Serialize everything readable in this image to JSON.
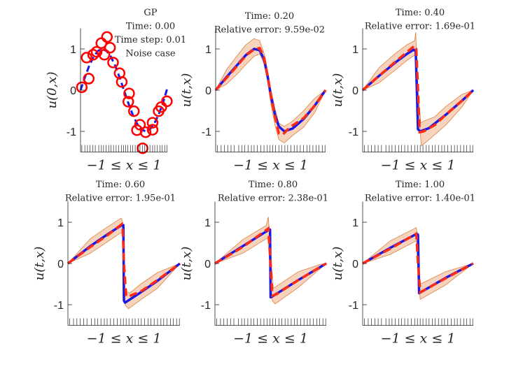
{
  "chart_data": [
    {
      "type": "scatter+line",
      "title_lines": [
        "GP",
        "Time: 0.00",
        "Time step: 0.01",
        "Noise case"
      ],
      "xlabel": "−1 ≤ x ≤ 1",
      "ylabel": "u(0,x)",
      "xlim": [
        -1,
        1
      ],
      "ylim": [
        -1.5,
        1.5
      ],
      "yticks": [
        1,
        0,
        -1
      ],
      "ytick_labels": [
        "1",
        "0",
        "-1"
      ],
      "exact_dashed_blue": [
        [
          -1,
          0
        ],
        [
          -0.9,
          0.31
        ],
        [
          -0.8,
          0.59
        ],
        [
          -0.7,
          0.81
        ],
        [
          -0.6,
          0.95
        ],
        [
          -0.5,
          1
        ],
        [
          -0.4,
          0.95
        ],
        [
          -0.3,
          0.81
        ],
        [
          -0.2,
          0.59
        ],
        [
          -0.1,
          0.31
        ],
        [
          0,
          0
        ],
        [
          0.1,
          -0.31
        ],
        [
          0.2,
          -0.59
        ],
        [
          0.3,
          -0.81
        ],
        [
          0.4,
          -0.95
        ],
        [
          0.5,
          -1
        ],
        [
          0.6,
          -0.95
        ],
        [
          0.7,
          -0.81
        ],
        [
          0.8,
          -0.59
        ],
        [
          0.9,
          -0.31
        ],
        [
          1,
          0.05
        ]
      ],
      "noisy_data": [
        [
          -0.97,
          0.07
        ],
        [
          -0.81,
          0.28
        ],
        [
          -0.86,
          0.79
        ],
        [
          -0.71,
          0.86
        ],
        [
          -0.63,
          0.93
        ],
        [
          -0.52,
          1.14
        ],
        [
          -0.39,
          1.29
        ],
        [
          -0.45,
          0.86
        ],
        [
          -0.32,
          1.03
        ],
        [
          -0.25,
          0.67
        ],
        [
          -0.1,
          0.41
        ],
        [
          -0.05,
          0.2
        ],
        [
          0.12,
          -0.08
        ],
        [
          0.1,
          -0.28
        ],
        [
          0.23,
          -0.51
        ],
        [
          0.37,
          -0.84
        ],
        [
          0.3,
          -0.97
        ],
        [
          0.5,
          -1.02
        ],
        [
          0.66,
          -0.79
        ],
        [
          0.66,
          -0.96
        ],
        [
          0.43,
          -1.41
        ],
        [
          0.8,
          -0.51
        ],
        [
          0.86,
          -0.41
        ],
        [
          0.99,
          -0.27
        ]
      ]
    },
    {
      "type": "line",
      "title_lines": [
        "Time: 0.20",
        "Relative error: 9.59e-02"
      ],
      "xlabel": "−1 ≤ x ≤ 1",
      "ylabel": "u(t,x)",
      "xlim": [
        -1,
        1
      ],
      "ylim": [
        -1.5,
        1.5
      ],
      "yticks": [
        1,
        0,
        -1
      ],
      "ytick_labels": [
        "1",
        "0",
        "-1"
      ],
      "exact": [
        [
          -1,
          0
        ],
        [
          -0.8,
          0.32
        ],
        [
          -0.6,
          0.62
        ],
        [
          -0.45,
          0.85
        ],
        [
          -0.3,
          1.0
        ],
        [
          -0.2,
          0.97
        ],
        [
          -0.12,
          0.75
        ],
        [
          -0.05,
          0.3
        ],
        [
          0,
          -0.1
        ],
        [
          0.08,
          -0.6
        ],
        [
          0.15,
          -0.88
        ],
        [
          0.25,
          -1.0
        ],
        [
          0.4,
          -0.93
        ],
        [
          0.6,
          -0.7
        ],
        [
          0.8,
          -0.38
        ],
        [
          1,
          0
        ]
      ],
      "prediction": [
        [
          -1,
          0
        ],
        [
          -0.8,
          0.3
        ],
        [
          -0.6,
          0.6
        ],
        [
          -0.45,
          0.84
        ],
        [
          -0.3,
          0.99
        ],
        [
          -0.2,
          1.02
        ],
        [
          -0.12,
          0.8
        ],
        [
          -0.05,
          0.3
        ],
        [
          0,
          -0.1
        ],
        [
          0.08,
          -0.65
        ],
        [
          0.15,
          -1.05
        ],
        [
          0.22,
          -1.08
        ],
        [
          0.35,
          -0.9
        ],
        [
          0.6,
          -0.68
        ],
        [
          0.8,
          -0.38
        ],
        [
          1,
          0
        ]
      ],
      "upper": [
        [
          -1,
          0
        ],
        [
          -0.8,
          0.5
        ],
        [
          -0.6,
          0.85
        ],
        [
          -0.45,
          1.1
        ],
        [
          -0.3,
          1.25
        ],
        [
          -0.2,
          1.2
        ],
        [
          -0.12,
          0.9
        ],
        [
          -0.05,
          0.45
        ],
        [
          0,
          0.05
        ],
        [
          0.08,
          -0.45
        ],
        [
          0.15,
          -0.8
        ],
        [
          0.25,
          -0.88
        ],
        [
          0.4,
          -0.75
        ],
        [
          0.6,
          -0.5
        ],
        [
          0.8,
          -0.2
        ],
        [
          1,
          0
        ]
      ],
      "lower": [
        [
          -1,
          0
        ],
        [
          -0.8,
          0.15
        ],
        [
          -0.6,
          0.4
        ],
        [
          -0.45,
          0.62
        ],
        [
          -0.3,
          0.82
        ],
        [
          -0.2,
          0.88
        ],
        [
          -0.12,
          0.65
        ],
        [
          -0.05,
          0.2
        ],
        [
          0,
          -0.3
        ],
        [
          0.08,
          -0.85
        ],
        [
          0.15,
          -1.2
        ],
        [
          0.25,
          -1.28
        ],
        [
          0.4,
          -1.1
        ],
        [
          0.6,
          -0.9
        ],
        [
          0.8,
          -0.55
        ],
        [
          1,
          0
        ]
      ]
    },
    {
      "type": "line",
      "title_lines": [
        "Time: 0.40",
        "Relative error: 1.69e-01"
      ],
      "xlabel": "−1 ≤ x ≤ 1",
      "ylabel": "u(t,x)",
      "xlim": [
        -1,
        1
      ],
      "ylim": [
        -1.5,
        1.5
      ],
      "yticks": [
        1,
        0,
        -1
      ],
      "ytick_labels": [
        "1",
        "0",
        "-1"
      ],
      "exact": [
        [
          -1,
          0
        ],
        [
          -0.7,
          0.35
        ],
        [
          -0.4,
          0.68
        ],
        [
          -0.2,
          0.88
        ],
        [
          -0.08,
          0.98
        ],
        [
          -0.04,
          0.95
        ],
        [
          -0.02,
          0.0
        ],
        [
          0.0,
          -0.95
        ],
        [
          0.04,
          -1.0
        ],
        [
          0.2,
          -0.92
        ],
        [
          0.5,
          -0.6
        ],
        [
          0.8,
          -0.25
        ],
        [
          1,
          0
        ]
      ],
      "prediction": [
        [
          -1,
          0
        ],
        [
          -0.7,
          0.35
        ],
        [
          -0.4,
          0.7
        ],
        [
          -0.2,
          0.92
        ],
        [
          -0.06,
          1.08
        ],
        [
          -0.03,
          1.0
        ],
        [
          0.0,
          0.0
        ],
        [
          0.03,
          -1.02
        ],
        [
          0.1,
          -1.0
        ],
        [
          0.3,
          -0.85
        ],
        [
          0.5,
          -0.6
        ],
        [
          0.8,
          -0.25
        ],
        [
          1,
          0
        ]
      ],
      "upper": [
        [
          -1,
          0
        ],
        [
          -0.7,
          0.55
        ],
        [
          -0.4,
          0.9
        ],
        [
          -0.2,
          1.1
        ],
        [
          -0.06,
          1.2
        ],
        [
          -0.04,
          1.4
        ],
        [
          0.0,
          0.0
        ],
        [
          0.05,
          -0.8
        ],
        [
          0.1,
          -0.75
        ],
        [
          0.3,
          -0.65
        ],
        [
          0.5,
          -0.4
        ],
        [
          0.8,
          -0.1
        ],
        [
          1,
          0
        ]
      ],
      "lower": [
        [
          -1,
          0
        ],
        [
          -0.7,
          0.18
        ],
        [
          -0.4,
          0.5
        ],
        [
          -0.2,
          0.72
        ],
        [
          -0.06,
          0.85
        ],
        [
          -0.03,
          0.8
        ],
        [
          0.0,
          0.0
        ],
        [
          0.04,
          -1.0
        ],
        [
          0.06,
          -1.35
        ],
        [
          0.2,
          -1.2
        ],
        [
          0.5,
          -0.85
        ],
        [
          0.8,
          -0.4
        ],
        [
          1,
          0
        ]
      ]
    },
    {
      "type": "line",
      "title_lines": [
        "Time: 0.60",
        "Relative error: 1.95e-01"
      ],
      "xlabel": "−1 ≤ x ≤ 1",
      "ylabel": "u(t,x)",
      "xlim": [
        -1,
        1
      ],
      "ylim": [
        -1.5,
        1.5
      ],
      "yticks": [
        1,
        0,
        -1
      ],
      "ytick_labels": [
        "1",
        "0",
        "-1"
      ],
      "exact": [
        [
          -1,
          0
        ],
        [
          -0.6,
          0.42
        ],
        [
          -0.3,
          0.7
        ],
        [
          -0.05,
          0.92
        ],
        [
          -0.01,
          0.93
        ],
        [
          0.0,
          -0.9
        ],
        [
          0.02,
          -0.95
        ],
        [
          0.3,
          -0.7
        ],
        [
          0.6,
          -0.42
        ],
        [
          1,
          0
        ]
      ],
      "prediction": [
        [
          -1,
          0
        ],
        [
          -0.6,
          0.4
        ],
        [
          -0.3,
          0.68
        ],
        [
          -0.04,
          0.95
        ],
        [
          -0.02,
          0.8
        ],
        [
          0.0,
          0
        ],
        [
          0.04,
          -0.8
        ],
        [
          0.08,
          -0.8
        ],
        [
          0.3,
          -0.68
        ],
        [
          0.6,
          -0.4
        ],
        [
          1,
          0
        ]
      ],
      "upper": [
        [
          -1,
          0
        ],
        [
          -0.6,
          0.6
        ],
        [
          -0.3,
          0.88
        ],
        [
          -0.05,
          1.1
        ],
        [
          -0.02,
          1.0
        ],
        [
          0.02,
          -0.65
        ],
        [
          0.1,
          -0.72
        ],
        [
          0.3,
          -0.5
        ],
        [
          0.6,
          -0.22
        ],
        [
          1,
          0
        ]
      ],
      "lower": [
        [
          -1,
          0
        ],
        [
          -0.6,
          0.25
        ],
        [
          -0.3,
          0.52
        ],
        [
          -0.05,
          0.75
        ],
        [
          -0.02,
          0.7
        ],
        [
          0.02,
          -1.0
        ],
        [
          0.08,
          -1.1
        ],
        [
          0.3,
          -0.88
        ],
        [
          0.6,
          -0.6
        ],
        [
          1,
          0
        ]
      ]
    },
    {
      "type": "line",
      "title_lines": [
        "Time: 0.80",
        "Relative error: 2.38e-01"
      ],
      "xlabel": "−1 ≤ x ≤ 1",
      "ylabel": "u(t,x)",
      "xlim": [
        -1,
        1
      ],
      "ylim": [
        -1.5,
        1.5
      ],
      "yticks": [
        1,
        0,
        -1
      ],
      "ytick_labels": [
        "1",
        "0",
        "-1"
      ],
      "exact": [
        [
          -1,
          0
        ],
        [
          -0.5,
          0.42
        ],
        [
          -0.05,
          0.8
        ],
        [
          -0.01,
          0.82
        ],
        [
          0.0,
          -0.82
        ],
        [
          0.03,
          -0.8
        ],
        [
          0.5,
          -0.4
        ],
        [
          1,
          0
        ]
      ],
      "prediction": [
        [
          -1,
          0
        ],
        [
          -0.5,
          0.4
        ],
        [
          -0.04,
          0.85
        ],
        [
          0.0,
          0.0
        ],
        [
          0.03,
          -0.78
        ],
        [
          0.1,
          -0.75
        ],
        [
          0.5,
          -0.4
        ],
        [
          1,
          0
        ]
      ],
      "upper": [
        [
          -1,
          0
        ],
        [
          -0.5,
          0.58
        ],
        [
          -0.08,
          0.92
        ],
        [
          -0.04,
          1.13
        ],
        [
          0.0,
          0.2
        ],
        [
          0.05,
          -0.6
        ],
        [
          0.5,
          -0.2
        ],
        [
          0.9,
          -0.02
        ],
        [
          1,
          0
        ]
      ],
      "lower": [
        [
          -1,
          0
        ],
        [
          -0.5,
          0.25
        ],
        [
          -0.05,
          0.62
        ],
        [
          0.0,
          -0.3
        ],
        [
          0.03,
          -0.9
        ],
        [
          0.08,
          -0.98
        ],
        [
          0.5,
          -0.58
        ],
        [
          1,
          0
        ]
      ]
    },
    {
      "type": "line",
      "title_lines": [
        "Time: 1.00",
        "Relative error: 1.40e-01"
      ],
      "xlabel": "−1 ≤ x ≤ 1",
      "ylabel": "u(t,x)",
      "xlim": [
        -1,
        1
      ],
      "ylim": [
        -1.5,
        1.5
      ],
      "yticks": [
        1,
        0,
        -1
      ],
      "ytick_labels": [
        "1",
        "0",
        "-1"
      ],
      "exact": [
        [
          -1,
          0
        ],
        [
          -0.5,
          0.38
        ],
        [
          -0.02,
          0.72
        ],
        [
          0.0,
          0.7
        ],
        [
          0.02,
          -0.72
        ],
        [
          0.5,
          -0.35
        ],
        [
          1,
          0
        ]
      ],
      "prediction": [
        [
          -1,
          0
        ],
        [
          -0.5,
          0.36
        ],
        [
          -0.03,
          0.72
        ],
        [
          0.0,
          0.0
        ],
        [
          0.04,
          -0.7
        ],
        [
          0.5,
          -0.36
        ],
        [
          1,
          0
        ]
      ],
      "upper": [
        [
          -1,
          0
        ],
        [
          -0.5,
          0.55
        ],
        [
          -0.03,
          0.87
        ],
        [
          0.0,
          0.6
        ],
        [
          0.04,
          -0.5
        ],
        [
          0.5,
          -0.2
        ],
        [
          1,
          0
        ]
      ],
      "lower": [
        [
          -1,
          0
        ],
        [
          -0.5,
          0.22
        ],
        [
          -0.03,
          0.55
        ],
        [
          0.0,
          -0.2
        ],
        [
          0.04,
          -0.87
        ],
        [
          0.5,
          -0.52
        ],
        [
          1,
          0
        ]
      ]
    }
  ],
  "rug_x": [
    -0.97,
    -0.9,
    -0.84,
    -0.78,
    -0.72,
    -0.66,
    -0.58,
    -0.52,
    -0.47,
    -0.41,
    -0.35,
    -0.3,
    -0.24,
    -0.18,
    -0.12,
    -0.06,
    -0.01,
    0.04,
    0.09,
    0.15,
    0.2,
    0.26,
    0.31,
    0.37,
    0.43,
    0.48,
    0.54,
    0.6,
    0.66,
    0.71,
    0.77,
    0.83,
    0.88,
    0.94,
    0.99
  ],
  "colors": {
    "exact": "#1a1ae8",
    "prediction": "#ff2a14",
    "band_fill": "#f6d3bd",
    "band_edge": "#e0803c",
    "data": "#ff0000",
    "axis": "#262626"
  }
}
